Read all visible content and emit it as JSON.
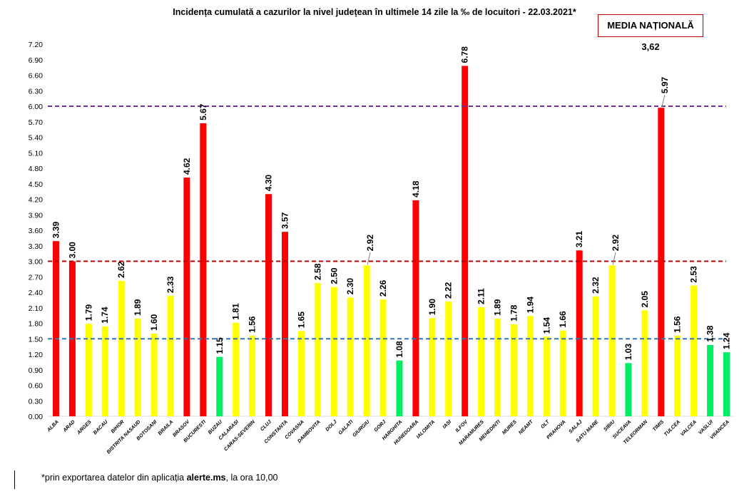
{
  "title": "Incidența cumulată a cazurilor la nivel județean în ultimele 14 zile la ‰ de locuitori - 22.03.2021*",
  "media": {
    "label": "MEDIA NAȚIONALĂ 3,62"
  },
  "footnote": {
    "prefix": "*prin exportarea datelor din aplicația ",
    "app": "alerte.ms",
    "suffix": ", la ora 10,00"
  },
  "colors": {
    "red": "#ff0000",
    "yellow": "#ffff00",
    "green": "#00ee66",
    "line_purple": "#7030a0",
    "line_red": "#c00000",
    "line_blue": "#2e75b6"
  },
  "chart_data": {
    "type": "bar",
    "title": "Incidența cumulată a cazurilor la nivel județean în ultimele 14 zile la ‰ de locuitori - 22.03.2021*",
    "xlabel": "",
    "ylabel": "",
    "ylim": [
      0,
      7.2
    ],
    "yticks": [
      "0.00",
      "0.30",
      "0.60",
      "0.90",
      "1.20",
      "1.50",
      "1.80",
      "2.10",
      "2.40",
      "2.70",
      "3.00",
      "3.30",
      "3.60",
      "3.90",
      "4.20",
      "4.50",
      "4.80",
      "5.10",
      "5.40",
      "5.70",
      "6.00",
      "6.30",
      "6.60",
      "6.90",
      "7.20"
    ],
    "categories": [
      "ALBA",
      "ARAD",
      "ARGES",
      "BACAU",
      "BIHOR",
      "BISTRITA NASAUD",
      "BOTOSANI",
      "BRAILA",
      "BRASOV",
      "BUCURESTI",
      "BUZAU",
      "CALARASI",
      "CARAS-SEVERIN",
      "CLUJ",
      "CONSTANTA",
      "COVASNA",
      "DAMBOVITA",
      "DOLJ",
      "GALATI",
      "GIURGIU",
      "GORJ",
      "HARGHITA",
      "HUNEDOARA",
      "IALOMITA",
      "IASI",
      "ILFOV",
      "MARAMURES",
      "MEHEDINTI",
      "MURES",
      "NEAMT",
      "OLT",
      "PRAHOVA",
      "SALAJ",
      "SATU MARE",
      "SIBIU",
      "SUCEAVA",
      "TELEORMAN",
      "TIMIS",
      "TULCEA",
      "VALCEA",
      "VASLUI",
      "VRANCEA"
    ],
    "values": [
      3.39,
      3.0,
      1.79,
      1.74,
      2.62,
      1.89,
      1.6,
      2.33,
      4.62,
      5.67,
      1.15,
      1.81,
      1.56,
      4.3,
      3.57,
      1.65,
      2.58,
      2.5,
      2.3,
      2.92,
      2.26,
      1.08,
      4.18,
      1.9,
      2.22,
      6.78,
      2.11,
      1.89,
      1.78,
      1.94,
      1.54,
      1.66,
      3.21,
      2.32,
      2.92,
      1.03,
      2.05,
      5.97,
      1.56,
      2.53,
      1.38,
      1.24
    ],
    "labels": [
      "3.39",
      "3.00",
      "1.79",
      "1.74",
      "2.62",
      "1.89",
      "1.60",
      "2.33",
      "4.62",
      "5.67",
      "1.15",
      "1.81",
      "1.56",
      "4.30",
      "3.57",
      "1.65",
      "2.58",
      "2.50",
      "2.30",
      "2.92",
      "2.26",
      "1.08",
      "4.18",
      "1.90",
      "2.22",
      "6.78",
      "2.11",
      "1.89",
      "1.78",
      "1.94",
      "1.54",
      "1.66",
      "3.21",
      "2.32",
      "2.92",
      "1.03",
      "2.05",
      "5.97",
      "1.56",
      "2.53",
      "1.38",
      "1.24"
    ],
    "bar_colors": [
      "red",
      "red",
      "yellow",
      "yellow",
      "yellow",
      "yellow",
      "yellow",
      "yellow",
      "red",
      "red",
      "green",
      "yellow",
      "yellow",
      "red",
      "red",
      "yellow",
      "yellow",
      "yellow",
      "yellow",
      "yellow",
      "yellow",
      "green",
      "red",
      "yellow",
      "yellow",
      "red",
      "yellow",
      "yellow",
      "yellow",
      "yellow",
      "yellow",
      "yellow",
      "red",
      "yellow",
      "yellow",
      "green",
      "yellow",
      "red",
      "yellow",
      "yellow",
      "green",
      "green"
    ],
    "callouts": [
      "GIURGIU",
      "SIBIU",
      "TIMIS"
    ],
    "reference_lines": [
      {
        "value": 6.0,
        "color": "line_purple"
      },
      {
        "value": 3.0,
        "color": "line_red"
      },
      {
        "value": 1.5,
        "color": "line_blue"
      }
    ],
    "grid": false,
    "legend": "none"
  }
}
